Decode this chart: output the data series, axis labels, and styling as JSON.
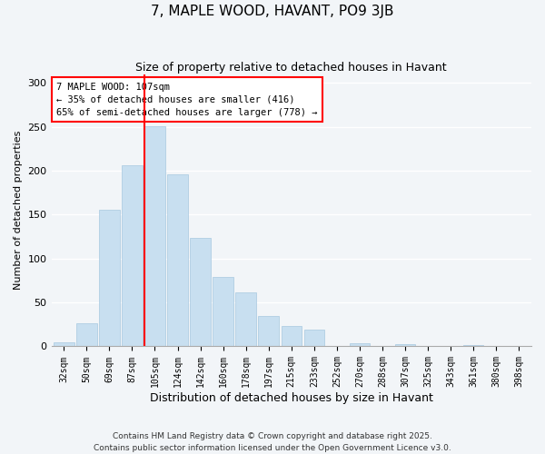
{
  "title": "7, MAPLE WOOD, HAVANT, PO9 3JB",
  "subtitle": "Size of property relative to detached houses in Havant",
  "xlabel": "Distribution of detached houses by size in Havant",
  "ylabel": "Number of detached properties",
  "categories": [
    "32sqm",
    "50sqm",
    "69sqm",
    "87sqm",
    "105sqm",
    "124sqm",
    "142sqm",
    "160sqm",
    "178sqm",
    "197sqm",
    "215sqm",
    "233sqm",
    "252sqm",
    "270sqm",
    "288sqm",
    "307sqm",
    "325sqm",
    "343sqm",
    "361sqm",
    "380sqm",
    "398sqm"
  ],
  "values": [
    5,
    26,
    156,
    206,
    251,
    196,
    124,
    79,
    62,
    35,
    23,
    19,
    0,
    4,
    0,
    3,
    0,
    0,
    2,
    0,
    1
  ],
  "bar_color": "#c8dff0",
  "bar_edge_color": "#a8c8e0",
  "marker_bar_index": 4,
  "marker_label": "7 MAPLE WOOD: 107sqm",
  "annotation_line1": "← 35% of detached houses are smaller (416)",
  "annotation_line2": "65% of semi-detached houses are larger (778) →",
  "marker_color": "red",
  "ylim": [
    0,
    310
  ],
  "yticks": [
    0,
    50,
    100,
    150,
    200,
    250,
    300
  ],
  "bg_color": "#f2f5f8",
  "grid_color": "#ffffff",
  "footer_line1": "Contains HM Land Registry data © Crown copyright and database right 2025.",
  "footer_line2": "Contains public sector information licensed under the Open Government Licence v3.0."
}
